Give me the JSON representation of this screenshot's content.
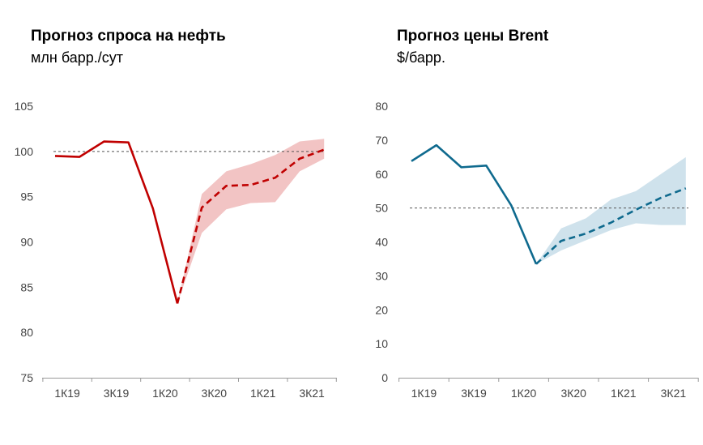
{
  "charts": [
    {
      "title": "Прогноз спроса на нефть",
      "subtitle": "млн барр./сут"
    },
    {
      "title": "Прогноз цены Brent",
      "subtitle": "$/барр."
    }
  ],
  "chart_data": [
    {
      "type": "line",
      "title": "Прогноз спроса на нефть",
      "subtitle": "млн барр./сут",
      "color": "#c00000",
      "band_color": "#f2c4c4",
      "x_labels": [
        "1К19",
        "3К19",
        "1К20",
        "3К20",
        "1К21",
        "3К21"
      ],
      "y_ticks": [
        105,
        100,
        95,
        90,
        85,
        80,
        75
      ],
      "ylim": [
        75,
        105
      ],
      "reference_line": 100,
      "actual": [
        [
          0,
          99.5
        ],
        [
          1,
          99.4
        ],
        [
          2,
          101.1
        ],
        [
          3,
          101.0
        ],
        [
          4,
          93.7
        ],
        [
          5,
          83.2
        ]
      ],
      "forecast": [
        [
          5,
          83.2
        ],
        [
          6,
          93.8
        ],
        [
          7,
          96.2
        ],
        [
          8,
          96.3
        ],
        [
          9,
          97.1
        ],
        [
          10,
          99.2
        ],
        [
          11,
          100.2
        ]
      ],
      "forecast_band": {
        "x": [
          5,
          6,
          7,
          8,
          9,
          10,
          11
        ],
        "upper": [
          83.2,
          95.3,
          97.8,
          98.6,
          99.6,
          101.1,
          101.4
        ],
        "lower": [
          83.2,
          91.0,
          93.6,
          94.3,
          94.4,
          97.8,
          99.2
        ]
      }
    },
    {
      "type": "line",
      "title": "Прогноз цены Brent",
      "subtitle": "$/барр.",
      "color": "#0f6a8e",
      "band_color": "#cfe2ec",
      "x_labels": [
        "1К19",
        "3К19",
        "1К20",
        "3К20",
        "1К21",
        "3К21"
      ],
      "y_ticks": [
        80,
        70,
        60,
        50,
        40,
        30,
        20,
        10,
        0
      ],
      "ylim": [
        0,
        80
      ],
      "reference_line": 50,
      "actual": [
        [
          0,
          63.8
        ],
        [
          1,
          68.5
        ],
        [
          2,
          62.0
        ],
        [
          3,
          62.5
        ],
        [
          4,
          50.8
        ],
        [
          5,
          33.5
        ]
      ],
      "forecast": [
        [
          5,
          33.5
        ],
        [
          6,
          40.3
        ],
        [
          7,
          42.5
        ],
        [
          8,
          45.7
        ],
        [
          9,
          49.5
        ],
        [
          10,
          53.0
        ],
        [
          11,
          55.8
        ]
      ],
      "forecast_band": {
        "x": [
          5,
          6,
          7,
          8,
          9,
          10,
          11
        ],
        "upper": [
          33.5,
          44.0,
          47.0,
          52.5,
          55.0,
          60.0,
          65.0
        ],
        "lower": [
          33.5,
          37.5,
          40.5,
          43.5,
          45.5,
          45.0,
          45.0
        ]
      }
    }
  ]
}
